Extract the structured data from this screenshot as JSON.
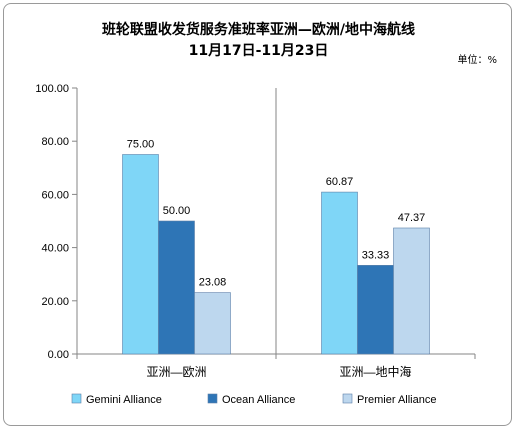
{
  "chart_data": {
    "type": "bar",
    "title": "班轮联盟收发货服务准班率亚洲—欧洲/地中海航线",
    "subtitle": "11月17日-11月23日",
    "unit_label": "单位：%",
    "categories": [
      "亚洲—欧洲",
      "亚洲—地中海"
    ],
    "series": [
      {
        "name": "Gemini Alliance",
        "values": [
          75.0,
          60.87
        ],
        "labels": [
          "75.00",
          "60.87"
        ],
        "color": "#7fd6f7"
      },
      {
        "name": "Ocean Alliance",
        "values": [
          50.0,
          33.33
        ],
        "labels": [
          "50.00",
          "33.33"
        ],
        "color": "#2e75b6"
      },
      {
        "name": "Premier Alliance",
        "values": [
          23.08,
          47.37
        ],
        "labels": [
          "23.08",
          "47.37"
        ],
        "color": "#bdd7ee"
      }
    ],
    "yticks": [
      "0.00",
      "20.00",
      "40.00",
      "60.00",
      "80.00",
      "100.00"
    ],
    "ylim": [
      0,
      100
    ],
    "grid": false,
    "legend_position": "bottom"
  }
}
